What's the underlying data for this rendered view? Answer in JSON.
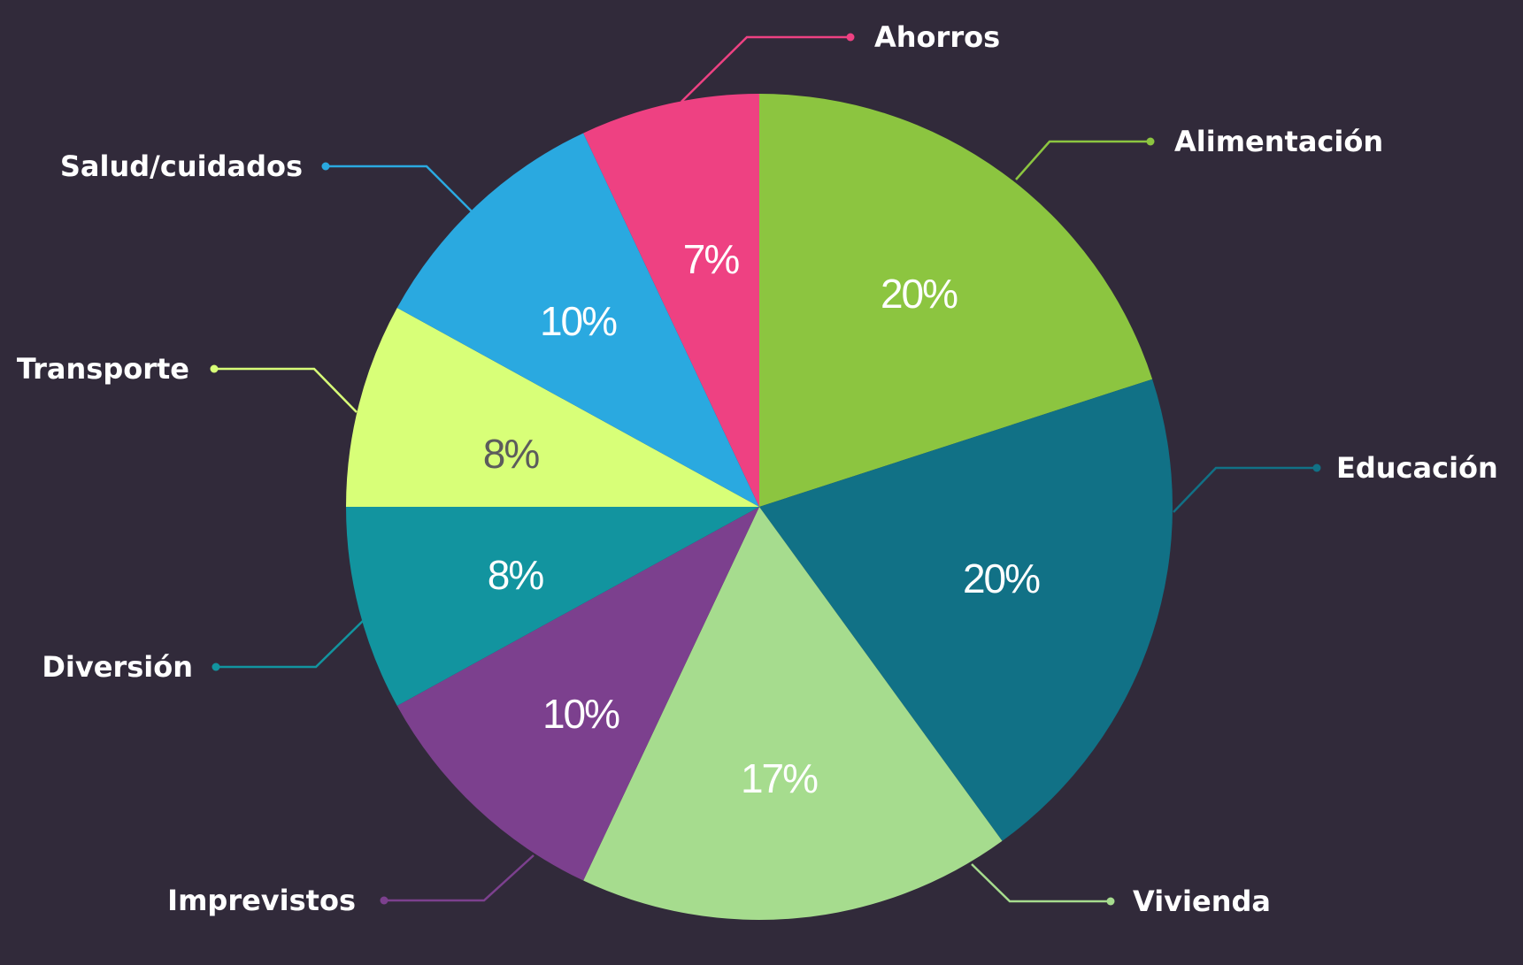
{
  "chart_data": {
    "type": "pie",
    "start_angle_deg": 0,
    "direction": "clockwise",
    "slices": [
      {
        "label": "Alimentación",
        "value": 20,
        "value_label": "20%",
        "color": "#8cc540",
        "text_color": "#ffffff"
      },
      {
        "label": "Educación",
        "value": 20,
        "value_label": "20%",
        "color": "#117186",
        "text_color": "#ffffff"
      },
      {
        "label": "Vivienda",
        "value": 17,
        "value_label": "17%",
        "color": "#a6dc8e",
        "text_color": "#ffffff"
      },
      {
        "label": "Imprevistos",
        "value": 10,
        "value_label": "10%",
        "color": "#7c408e",
        "text_color": "#ffffff"
      },
      {
        "label": "Diversión",
        "value": 8,
        "value_label": "8%",
        "color": "#12949f",
        "text_color": "#ffffff"
      },
      {
        "label": "Transporte",
        "value": 8,
        "value_label": "8%",
        "color": "#d8ff78",
        "text_color": "#5c5c5c"
      },
      {
        "label": "Salud/cuidados",
        "value": 10,
        "value_label": "10%",
        "color": "#2aa9e0",
        "text_color": "#ffffff"
      },
      {
        "label": "Ahorros",
        "value": 7,
        "value_label": "7%",
        "color": "#ee4182",
        "text_color": "#ffffff"
      }
    ],
    "background": "#312a3a"
  }
}
